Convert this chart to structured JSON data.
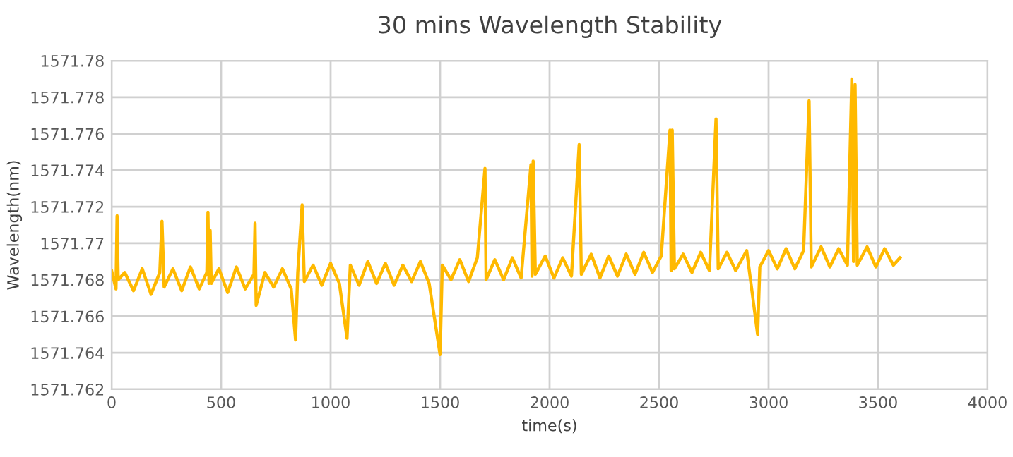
{
  "chart_data": {
    "type": "line",
    "title": "30 mins Wavelength Stability",
    "xlabel": "time(s)",
    "ylabel": "Wavelength(nm)",
    "series": [
      {
        "color": "#ffb900",
        "x": [
          0,
          20,
          25,
          30,
          60,
          100,
          140,
          180,
          220,
          230,
          240,
          280,
          320,
          360,
          400,
          435,
          440,
          445,
          450,
          455,
          490,
          530,
          570,
          610,
          650,
          655,
          660,
          700,
          740,
          780,
          820,
          840,
          850,
          870,
          880,
          920,
          960,
          1000,
          1040,
          1075,
          1090,
          1130,
          1170,
          1210,
          1250,
          1290,
          1330,
          1370,
          1410,
          1450,
          1500,
          1510,
          1550,
          1590,
          1630,
          1670,
          1705,
          1710,
          1750,
          1790,
          1830,
          1870,
          1915,
          1920,
          1925,
          1935,
          1980,
          2020,
          2060,
          2100,
          2135,
          2145,
          2190,
          2230,
          2270,
          2310,
          2350,
          2390,
          2430,
          2470,
          2510,
          2550,
          2555,
          2560,
          2570,
          2610,
          2650,
          2690,
          2730,
          2760,
          2770,
          2810,
          2850,
          2900,
          2950,
          2960,
          3000,
          3040,
          3080,
          3120,
          3160,
          3185,
          3195,
          3240,
          3280,
          3320,
          3360,
          3380,
          3388,
          3395,
          3405,
          3450,
          3490,
          3530,
          3570,
          3600
        ],
        "values": [
          1571.7685,
          1571.7675,
          1571.7715,
          1571.768,
          1571.7684,
          1571.7674,
          1571.7686,
          1571.7672,
          1571.7684,
          1571.7712,
          1571.7676,
          1571.7686,
          1571.7674,
          1571.7687,
          1571.7675,
          1571.7684,
          1571.7717,
          1571.7678,
          1571.7707,
          1571.7678,
          1571.7686,
          1571.7673,
          1571.7687,
          1571.7675,
          1571.7683,
          1571.7711,
          1571.7666,
          1571.7684,
          1571.7676,
          1571.7686,
          1571.7675,
          1571.7647,
          1571.7684,
          1571.7721,
          1571.7679,
          1571.7688,
          1571.7677,
          1571.7689,
          1571.7678,
          1571.7648,
          1571.7688,
          1571.7677,
          1571.769,
          1571.7678,
          1571.7689,
          1571.7677,
          1571.7688,
          1571.7679,
          1571.769,
          1571.7678,
          1571.7639,
          1571.7688,
          1571.768,
          1571.7691,
          1571.7679,
          1571.7692,
          1571.7741,
          1571.768,
          1571.7691,
          1571.768,
          1571.7692,
          1571.7681,
          1571.7743,
          1571.7682,
          1571.7745,
          1571.7683,
          1571.7693,
          1571.7681,
          1571.7692,
          1571.7682,
          1571.7754,
          1571.7683,
          1571.7694,
          1571.7681,
          1571.7693,
          1571.7682,
          1571.7694,
          1571.7683,
          1571.7695,
          1571.7684,
          1571.7693,
          1571.7762,
          1571.7685,
          1571.7762,
          1571.7686,
          1571.7694,
          1571.7684,
          1571.7695,
          1571.7685,
          1571.7768,
          1571.7686,
          1571.7695,
          1571.7685,
          1571.7696,
          1571.765,
          1571.7687,
          1571.7696,
          1571.7686,
          1571.7697,
          1571.7686,
          1571.7696,
          1571.7778,
          1571.7687,
          1571.7698,
          1571.7687,
          1571.7697,
          1571.7688,
          1571.779,
          1571.769,
          1571.7787,
          1571.7688,
          1571.7698,
          1571.7687,
          1571.7697,
          1571.7688,
          1571.7692
        ]
      }
    ],
    "xlim": [
      0,
      4000
    ],
    "xticks": [
      0,
      500,
      1000,
      1500,
      2000,
      2500,
      3000,
      3500,
      4000
    ],
    "ylim": [
      1571.762,
      1571.78
    ],
    "yticks": [
      1571.762,
      1571.764,
      1571.766,
      1571.768,
      1571.77,
      1571.772,
      1571.774,
      1571.776,
      1571.778,
      1571.78
    ],
    "grid": true,
    "marker": "none",
    "line_style": "solid"
  }
}
